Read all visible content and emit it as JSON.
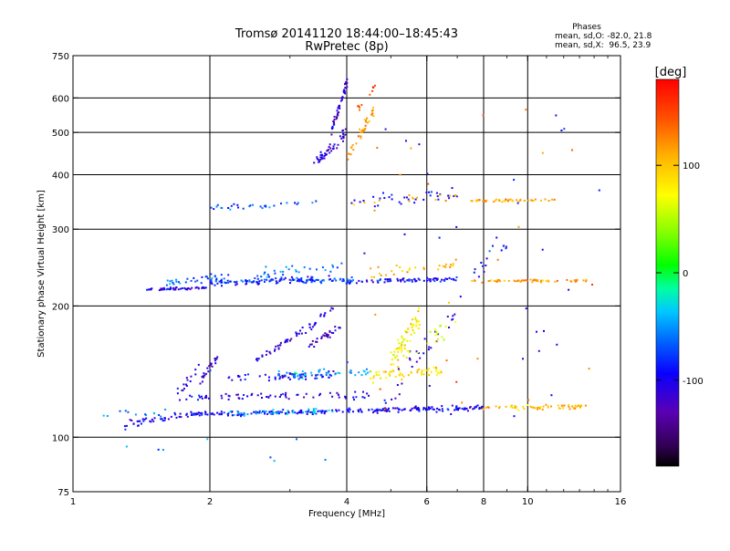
{
  "chart_data": {
    "type": "scatter",
    "title": "Tromsø 20141120 18:44:00–18:45:43",
    "subtitle": "RwPretec (8p)",
    "xlabel": "Frequency [MHz]",
    "ylabel": "Stationary phase Virtual Height [km]",
    "x_scale": "log",
    "y_scale": "log",
    "xlim": [
      1,
      16
    ],
    "ylim": [
      75,
      750
    ],
    "x_ticks": [
      {
        "value": 1,
        "label": "1"
      },
      {
        "value": 2,
        "label": "2"
      },
      {
        "value": 4,
        "label": "4"
      },
      {
        "value": 6,
        "label": "6"
      },
      {
        "value": 8,
        "label": "8"
      },
      {
        "value": 10,
        "label": "10"
      },
      {
        "value": 16,
        "label": "16"
      }
    ],
    "y_ticks": [
      {
        "value": 75,
        "label": "75"
      },
      {
        "value": 100,
        "label": "100"
      },
      {
        "value": 200,
        "label": "200"
      },
      {
        "value": 300,
        "label": "300"
      },
      {
        "value": 400,
        "label": "400"
      },
      {
        "value": 500,
        "label": "500"
      },
      {
        "value": 600,
        "label": "600"
      },
      {
        "value": 750,
        "label": "750"
      }
    ],
    "grid_x": [
      2,
      4,
      6,
      8,
      10
    ],
    "grid_y": [
      100,
      200,
      300,
      400,
      500,
      600
    ],
    "phases_info": {
      "title": "Phases",
      "line1": "mean, sd,O: -82.0, 21.8",
      "line2": "mean, sd,X:  96.5, 23.9"
    },
    "colorbar": {
      "label": "[deg]",
      "range": [
        -180,
        180
      ],
      "ticks": [
        {
          "value": 100,
          "label": "100"
        },
        {
          "value": 0,
          "label": "0"
        },
        {
          "value": -100,
          "label": "-100"
        }
      ],
      "colormap": "rainbow: black/purple (-180) to blue, cyan, green (0), yellow, orange, red (180)"
    },
    "traces": [
      {
        "x": [
          1.3,
          1.8
        ],
        "y": [
          107,
          113
        ],
        "phase": -100,
        "noise": 3,
        "count": 40
      },
      {
        "x": [
          1.8,
          4.0
        ],
        "y": [
          113,
          115
        ],
        "phase": -95,
        "noise": 2,
        "count": 110
      },
      {
        "x": [
          2.2,
          3.8
        ],
        "y": [
          113,
          115
        ],
        "phase": -40,
        "noise": 2,
        "count": 40
      },
      {
        "x": [
          4.0,
          8.0
        ],
        "y": [
          115,
          117
        ],
        "phase": -100,
        "noise": 2,
        "count": 120
      },
      {
        "x": [
          8.0,
          13.5
        ],
        "y": [
          117,
          118
        ],
        "phase": 105,
        "noise": 2,
        "count": 60
      },
      {
        "x": [
          1.1,
          1.7
        ],
        "y": [
          111,
          114
        ],
        "phase": -60,
        "noise": 4,
        "count": 12
      },
      {
        "x": [
          1.7,
          4.5
        ],
        "y": [
          123,
          125
        ],
        "phase": -110,
        "noise": 3,
        "count": 70
      },
      {
        "x": [
          1.9,
          2.1
        ],
        "y": [
          135,
          155
        ],
        "phase": -110,
        "noise": 4,
        "count": 25
      },
      {
        "x": [
          1.7,
          1.9
        ],
        "y": [
          125,
          145
        ],
        "phase": -110,
        "noise": 4,
        "count": 15
      },
      {
        "x": [
          2.2,
          3.8
        ],
        "y": [
          137,
          139
        ],
        "phase": -100,
        "noise": 3,
        "count": 60
      },
      {
        "x": [
          2.8,
          4.5
        ],
        "y": [
          139,
          141
        ],
        "phase": -50,
        "noise": 3,
        "count": 45
      },
      {
        "x": [
          2.5,
          3.5
        ],
        "y": [
          150,
          185
        ],
        "phase": -110,
        "noise": 3,
        "count": 45
      },
      {
        "x": [
          3.3,
          3.9
        ],
        "y": [
          162,
          180
        ],
        "phase": -115,
        "noise": 3,
        "count": 30
      },
      {
        "x": [
          3.5,
          3.8
        ],
        "y": [
          190,
          200
        ],
        "phase": -110,
        "noise": 2,
        "count": 8
      },
      {
        "x": [
          4.5,
          6.5
        ],
        "y": [
          138,
          142
        ],
        "phase": 90,
        "noise": 4,
        "count": 55
      },
      {
        "x": [
          5.0,
          5.8
        ],
        "y": [
          150,
          190
        ],
        "phase": 80,
        "noise": 8,
        "count": 55
      },
      {
        "x": [
          4.8,
          7.0
        ],
        "y": [
          120,
          200
        ],
        "phase": -110,
        "noise": 10,
        "count": 30
      },
      {
        "x": [
          5.0,
          7.0
        ],
        "y": [
          150,
          180
        ],
        "phase": 60,
        "noise": 8,
        "count": 25
      },
      {
        "x": [
          1.45,
          2.0
        ],
        "y": [
          218,
          220
        ],
        "phase": -105,
        "noise": 1,
        "count": 45
      },
      {
        "x": [
          1.6,
          2.2
        ],
        "y": [
          225,
          235
        ],
        "phase": -70,
        "noise": 3,
        "count": 30
      },
      {
        "x": [
          2.0,
          4.2
        ],
        "y": [
          228,
          229
        ],
        "phase": -70,
        "noise": 2,
        "count": 90
      },
      {
        "x": [
          2.0,
          3.8
        ],
        "y": [
          225,
          232
        ],
        "phase": -100,
        "noise": 3,
        "count": 55
      },
      {
        "x": [
          2.5,
          4.0
        ],
        "y": [
          236,
          245
        ],
        "phase": -60,
        "noise": 4,
        "count": 30
      },
      {
        "x": [
          4.0,
          7.0
        ],
        "y": [
          228,
          230
        ],
        "phase": -95,
        "noise": 2,
        "count": 80
      },
      {
        "x": [
          4.5,
          7.0
        ],
        "y": [
          235,
          250
        ],
        "phase": 110,
        "noise": 5,
        "count": 30
      },
      {
        "x": [
          7.5,
          13.5
        ],
        "y": [
          228,
          229
        ],
        "phase": 120,
        "noise": 1,
        "count": 60
      },
      {
        "x": [
          7.5,
          9.0
        ],
        "y": [
          230,
          280
        ],
        "phase": -90,
        "noise": 10,
        "count": 15
      },
      {
        "x": [
          2.0,
          3.5
        ],
        "y": [
          335,
          345
        ],
        "phase": -70,
        "noise": 2,
        "count": 30
      },
      {
        "x": [
          4.0,
          7.0
        ],
        "y": [
          345,
          360
        ],
        "phase": -100,
        "noise": 5,
        "count": 35
      },
      {
        "x": [
          4.0,
          7.0
        ],
        "y": [
          345,
          355
        ],
        "phase": 120,
        "noise": 5,
        "count": 15
      },
      {
        "x": [
          7.5,
          11.5
        ],
        "y": [
          348,
          350
        ],
        "phase": 115,
        "noise": 1,
        "count": 45
      },
      {
        "x": [
          3.4,
          4.0
        ],
        "y": [
          420,
          500
        ],
        "phase": -110,
        "noise": 4,
        "count": 45
      },
      {
        "x": [
          3.7,
          4.0
        ],
        "y": [
          500,
          650
        ],
        "phase": -110,
        "noise": 3,
        "count": 45
      },
      {
        "x": [
          4.0,
          4.6
        ],
        "y": [
          440,
          560
        ],
        "phase": 120,
        "noise": 4,
        "count": 35
      },
      {
        "x": [
          4.2,
          4.6
        ],
        "y": [
          560,
          630
        ],
        "phase": 140,
        "noise": 3,
        "count": 10
      },
      {
        "x": [
          4.0,
          15.0
        ],
        "y": [
          90,
          600
        ],
        "phase": -100,
        "noise": 0,
        "count": 30
      },
      {
        "x": [
          4.0,
          15.0
        ],
        "y": [
          100,
          600
        ],
        "phase": 130,
        "noise": 0,
        "count": 25
      },
      {
        "x": [
          1.2,
          4.0
        ],
        "y": [
          88,
          100
        ],
        "phase": -60,
        "noise": 0,
        "count": 8
      }
    ]
  }
}
